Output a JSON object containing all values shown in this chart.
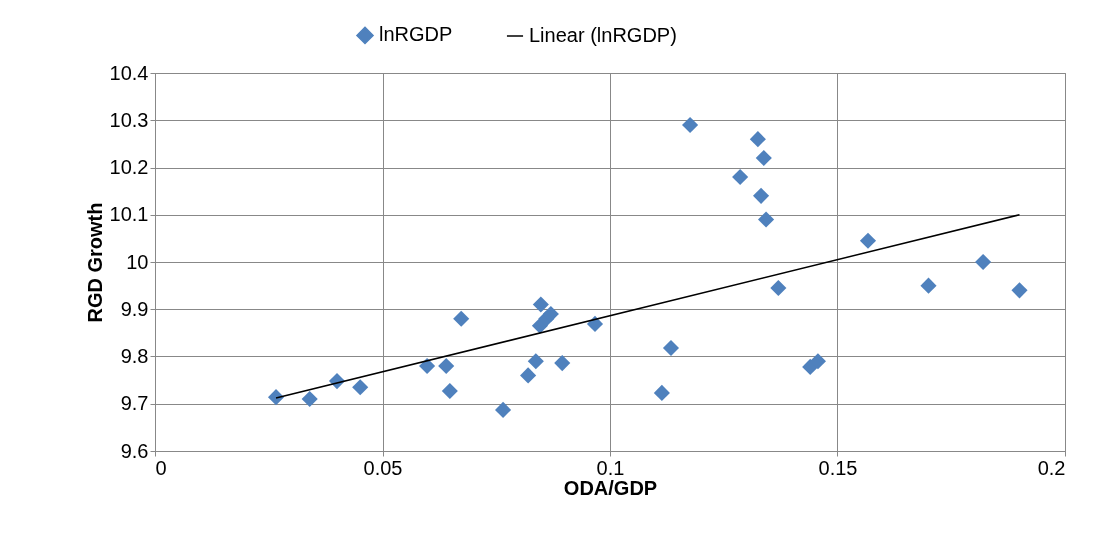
{
  "chart_data": {
    "type": "scatter",
    "xlabel": "ODA/GDP",
    "ylabel": "RGD Growth",
    "xlim": [
      0,
      0.2
    ],
    "ylim": [
      9.6,
      10.4
    ],
    "xticks": [
      0,
      0.05,
      0.1,
      0.15,
      0.2
    ],
    "yticks": [
      9.6,
      9.7,
      9.8,
      9.9,
      10,
      10.1,
      10.2,
      10.3,
      10.4
    ],
    "grid": true,
    "legend": "top",
    "series": [
      {
        "name": "lnRGDP",
        "marker": "diamond",
        "color": "#4f81bd",
        "x": [
          0.0266,
          0.034,
          0.04,
          0.0451,
          0.0598,
          0.064,
          0.0648,
          0.0673,
          0.0765,
          0.082,
          0.0837,
          0.0848,
          0.0846,
          0.086,
          0.087,
          0.0895,
          0.0967,
          0.1114,
          0.1134,
          0.1176,
          0.1325,
          0.1286,
          0.1338,
          0.1332,
          0.1343,
          0.137,
          0.144,
          0.1457,
          0.1567,
          0.17,
          0.182,
          0.19
        ],
        "values": [
          9.714,
          9.71,
          9.748,
          9.735,
          9.78,
          9.78,
          9.727,
          9.88,
          9.687,
          9.76,
          9.79,
          9.91,
          9.865,
          9.88,
          9.89,
          9.786,
          9.869,
          9.723,
          9.818,
          10.29,
          10.26,
          10.18,
          10.22,
          10.14,
          10.09,
          9.945,
          9.778,
          9.79,
          10.045,
          9.95,
          10.0,
          9.94
        ]
      },
      {
        "name": "Linear (lnRGDP)",
        "type": "line",
        "marker": "none",
        "color": "#000000",
        "x": [
          0.0266,
          0.19
        ],
        "values": [
          9.712,
          10.1
        ]
      }
    ]
  }
}
